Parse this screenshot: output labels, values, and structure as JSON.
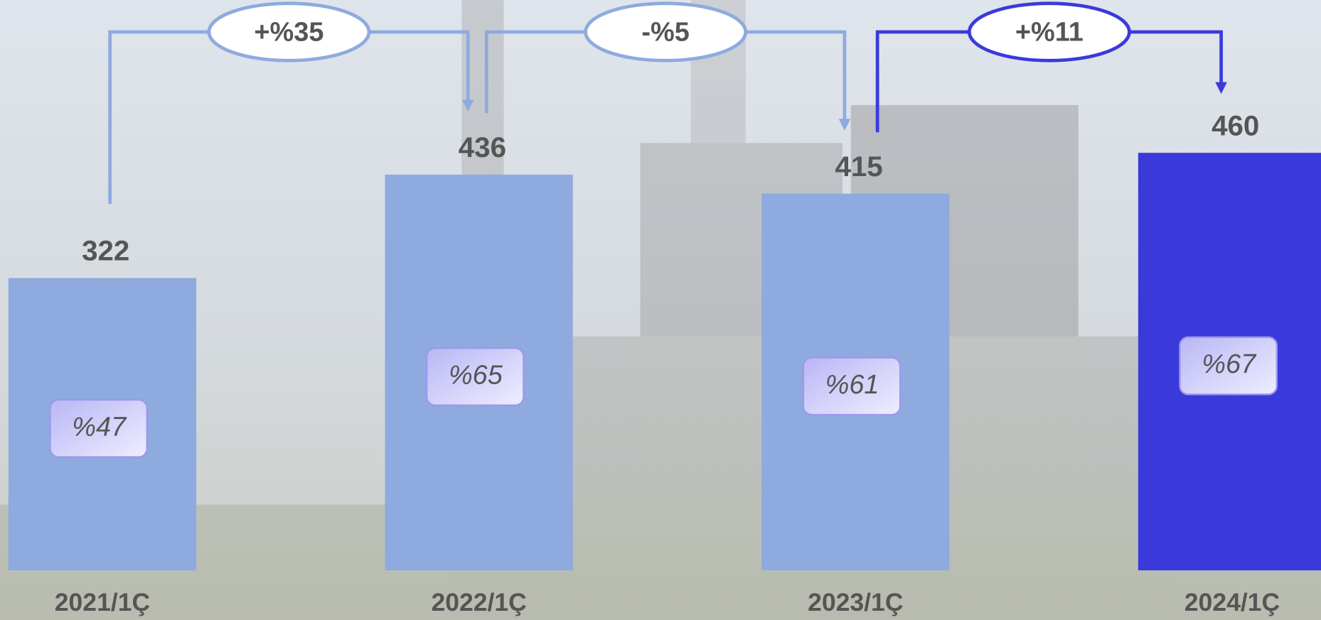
{
  "chart_data": {
    "type": "bar",
    "categories": [
      "2021/1Ç",
      "2022/1Ç",
      "2023/1Ç",
      "2024/1Ç"
    ],
    "values": [
      322,
      436,
      415,
      460
    ],
    "colors": [
      "#8eaadf",
      "#8eaadf",
      "#8eaadf",
      "#3a3adb"
    ],
    "shares": [
      47,
      65,
      61,
      67
    ],
    "share_labels": [
      "%47",
      "%65",
      "%61",
      "%67"
    ],
    "changes": [
      35,
      -5,
      11
    ],
    "change_labels": [
      "+%35",
      "-%5",
      "+%11"
    ],
    "ylim": [
      0,
      500
    ]
  }
}
